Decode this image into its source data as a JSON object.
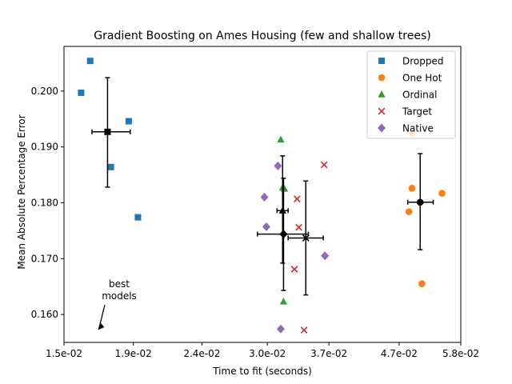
{
  "chart_data": {
    "type": "scatter",
    "title": "Gradient Boosting on Ames Housing (few and shallow trees)",
    "xlabel": "Time to fit (seconds)",
    "ylabel": "Mean Absolute Percentage Error",
    "xscale": "log",
    "xlim": [
      0.015,
      0.058
    ],
    "ylim": [
      0.155,
      0.208
    ],
    "xticks": [
      0.015,
      0.019,
      0.024,
      0.03,
      0.037,
      0.047,
      0.058
    ],
    "xtick_labels": [
      "1.5e-02",
      "1.9e-02",
      "2.4e-02",
      "3.0e-02",
      "3.7e-02",
      "4.7e-02",
      "5.8e-02"
    ],
    "yticks": [
      0.16,
      0.17,
      0.18,
      0.19,
      0.2
    ],
    "ytick_labels": [
      "0.160",
      "0.170",
      "0.180",
      "0.190",
      "0.200"
    ],
    "grid": false,
    "legend_position": "top-right",
    "series": [
      {
        "name": "Dropped",
        "marker": "square",
        "color": "#1f77b4",
        "points": [
          [
            0.0159,
            0.1997
          ],
          [
            0.0164,
            0.2054
          ],
          [
            0.0176,
            0.1864
          ],
          [
            0.0187,
            0.1946
          ],
          [
            0.0193,
            0.1774
          ]
        ],
        "mean": [
          0.0174,
          0.1927
        ],
        "xerr": [
          0.0165,
          0.0188
        ],
        "yerr": [
          0.1828,
          0.2024
        ]
      },
      {
        "name": "One Hot",
        "marker": "circle",
        "color": "#ff7f0e",
        "points": [
          [
            0.0486,
            0.1784
          ],
          [
            0.0491,
            0.1826
          ],
          [
            0.0491,
            0.1925
          ],
          [
            0.0508,
            0.1655
          ],
          [
            0.0544,
            0.1817
          ]
        ],
        "mean": [
          0.0505,
          0.1801
        ],
        "xerr": [
          0.0484,
          0.0528
        ],
        "yerr": [
          0.1716,
          0.1888
        ]
      },
      {
        "name": "Ordinal",
        "marker": "triangle",
        "color": "#2ca02c",
        "points": [
          [
            0.0314,
            0.1913
          ],
          [
            0.0316,
            0.1827
          ],
          [
            0.0318,
            0.1825
          ],
          [
            0.0317,
            0.1623
          ]
        ],
        "mean": [
          0.0316,
          0.1786
        ],
        "xerr": [
          0.031,
          0.0322
        ],
        "yerr": [
          0.1692,
          0.1884
        ]
      },
      {
        "name": "Target",
        "marker": "x",
        "color": "#d62728",
        "points": [
          [
            0.0329,
            0.1681
          ],
          [
            0.0332,
            0.1807
          ],
          [
            0.0334,
            0.1756
          ],
          [
            0.034,
            0.1572
          ],
          [
            0.0364,
            0.1868
          ]
        ],
        "mean": [
          0.0342,
          0.1737
        ],
        "xerr": [
          0.0322,
          0.0363
        ],
        "yerr": [
          0.1635,
          0.1839
        ]
      },
      {
        "name": "Native",
        "marker": "diamond",
        "color": "#9467bd",
        "points": [
          [
            0.0297,
            0.181
          ],
          [
            0.0299,
            0.1757
          ],
          [
            0.0311,
            0.1866
          ],
          [
            0.0314,
            0.1574
          ],
          [
            0.0365,
            0.1705
          ]
        ],
        "mean": [
          0.0317,
          0.1744
        ],
        "xerr": [
          0.029,
          0.0345
        ],
        "yerr": [
          0.1643,
          0.1844
        ]
      }
    ],
    "annotation": {
      "text": "best\nmodels",
      "arrow_to": [
        0.0159,
        0.157
      ]
    }
  }
}
